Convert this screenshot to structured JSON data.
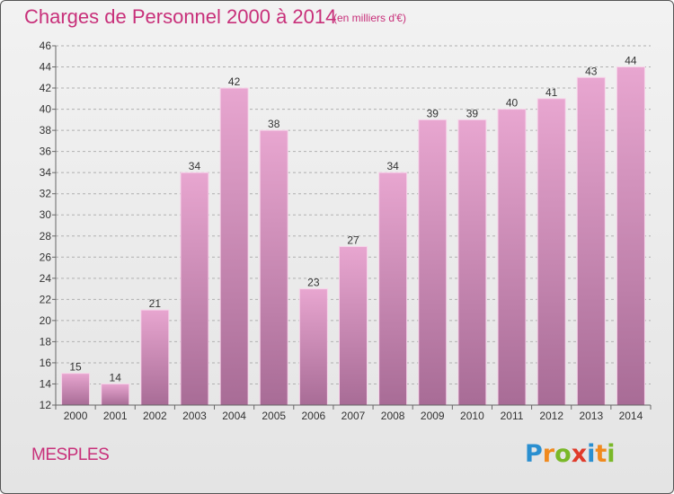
{
  "header": {
    "title": "Charges de Personnel 2000 à 2014",
    "subtitle": "(en milliers d'€)"
  },
  "footer": {
    "place": "MESPLES",
    "logo_text": "Proxiti"
  },
  "colors": {
    "title": "#c8307a",
    "bar_top": "#e8a6d0",
    "bar_bottom": "#a86c96",
    "grid": "#b0b0b0"
  },
  "chart_data": {
    "type": "bar",
    "title": "Charges de Personnel 2000 à 2014",
    "subtitle": "(en milliers d'€)",
    "categories": [
      "2000",
      "2001",
      "2002",
      "2003",
      "2004",
      "2005",
      "2006",
      "2007",
      "2008",
      "2009",
      "2010",
      "2011",
      "2012",
      "2013",
      "2014"
    ],
    "values": [
      15,
      14,
      21,
      34,
      42,
      38,
      23,
      27,
      34,
      39,
      39,
      40,
      41,
      43,
      44
    ],
    "ylim": [
      12,
      46
    ],
    "yticks": [
      12,
      14,
      16,
      18,
      20,
      22,
      24,
      26,
      28,
      30,
      32,
      34,
      36,
      38,
      40,
      42,
      44,
      46
    ],
    "grid": true,
    "data_labels": true
  }
}
